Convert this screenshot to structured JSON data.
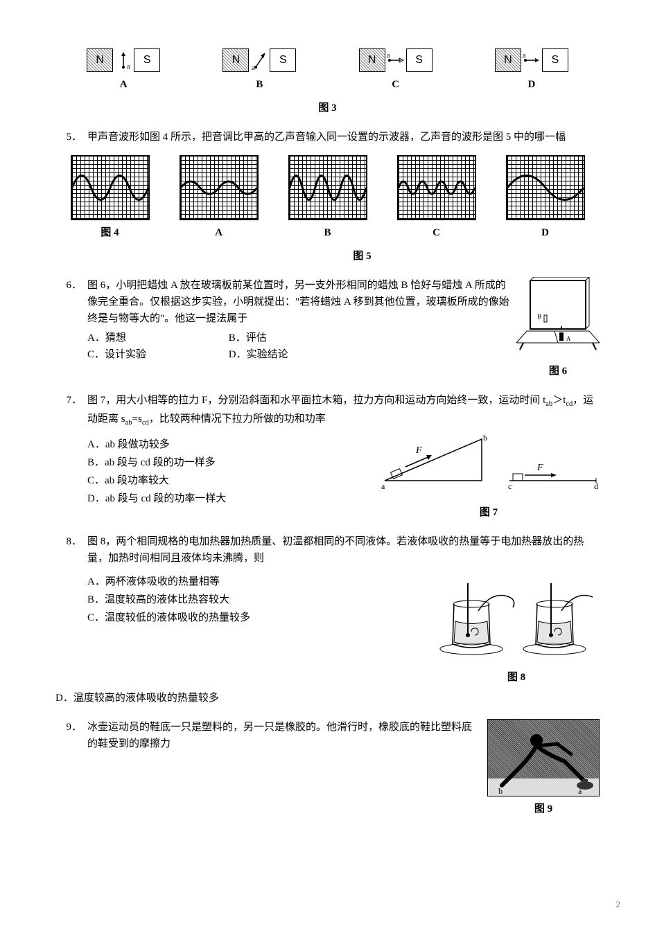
{
  "fig3": {
    "options": [
      "A",
      "B",
      "C",
      "D"
    ],
    "caption": "图 3",
    "pole_left": "N",
    "pole_right": "S",
    "needle_pos_label": "a",
    "directions": [
      "up",
      "up-right",
      "right-hollow",
      "right-filled"
    ]
  },
  "q5": {
    "num": "5．",
    "text": "甲声音波形如图 4 所示，把音调比甲高的乙声音输入同一设置的示波器，乙声音的波形是图 5 中的哪一幅",
    "labels": [
      "图 4",
      "A",
      "B",
      "C",
      "D"
    ],
    "caption": "图 5",
    "waves": [
      {
        "periods": 2,
        "amp": 35
      },
      {
        "periods": 2,
        "amp": 18
      },
      {
        "periods": 3,
        "amp": 35
      },
      {
        "periods": 4,
        "amp": 18
      },
      {
        "periods": 1,
        "amp": 35
      }
    ],
    "box_bg_grid_step": 6,
    "stroke_color": "#000000",
    "stroke_width": 3
  },
  "q6": {
    "num": "6．",
    "text": "图 6，小明把蜡烛 A 放在玻璃板前某位置时，另一支外形相同的蜡烛 B 恰好与蜡烛 A 所成的像完全重合。仅根据这步实验，小明就提出：\"若将蜡烛 A 移到其他位置，玻璃板所成的像始终是与物等大的\"。他这一提法属于",
    "opts": {
      "A": "A．猜想",
      "B": "B．评估",
      "C": "C．设计实验",
      "D": "D．实验结论"
    },
    "caption": "图 6"
  },
  "q7": {
    "num": "7．",
    "text": "图 7，用大小相等的拉力 F，分别沿斜面和水平面拉木箱，拉力方向和运动方向始终一致，运动时间 t_ab > t_cd，运动距离 s_ab = s_cd，比较两种情况下拉力所做的功和功率",
    "text_html": "图 7，用大小相等的拉力 F，分别沿斜面和水平面拉木箱，拉力方向和运动方向始终一致，运动时间 t<sub>ab</sub>＞t<sub>cd</sub>，运动距离 s<sub>ab</sub>=s<sub>cd</sub>，比较两种情况下拉力所做的功和功率",
    "opts": [
      "A．ab 段做功较多",
      "B．ab 段与 cd 段的功一样多",
      "C．ab 段功率较大",
      "D．ab 段与 cd 段的功率一样大"
    ],
    "caption": "图 7",
    "fig_labels": {
      "a": "a",
      "b": "b",
      "c": "c",
      "d": "d",
      "F": "F"
    }
  },
  "q8": {
    "num": "8．",
    "text": "图 8，两个相同规格的电加热器加热质量、初温都相同的不同液体。若液体吸收的热量等于电加热器放出的热量，加热时间相同且液体均未沸腾，则",
    "opts": [
      "A．两杯液体吸收的热量相等",
      "B．温度较高的液体比热容较大",
      "C．温度较低的液体吸收的热量较多"
    ],
    "opt_outdent": "D．温度较高的液体吸收的热量较多",
    "caption": "图 8"
  },
  "q9": {
    "num": "9．",
    "text": "冰壶运动员的鞋底一只是塑料的，另一只是橡胶的。他滑行时，橡胶底的鞋比塑料底的鞋受到的摩擦力",
    "caption": "图 9",
    "fig_labels": {
      "a": "a",
      "b": "b"
    }
  },
  "page_number": "2",
  "colors": {
    "text": "#000000",
    "bg": "#ffffff",
    "grid": "#000000",
    "shade": "#888888"
  }
}
